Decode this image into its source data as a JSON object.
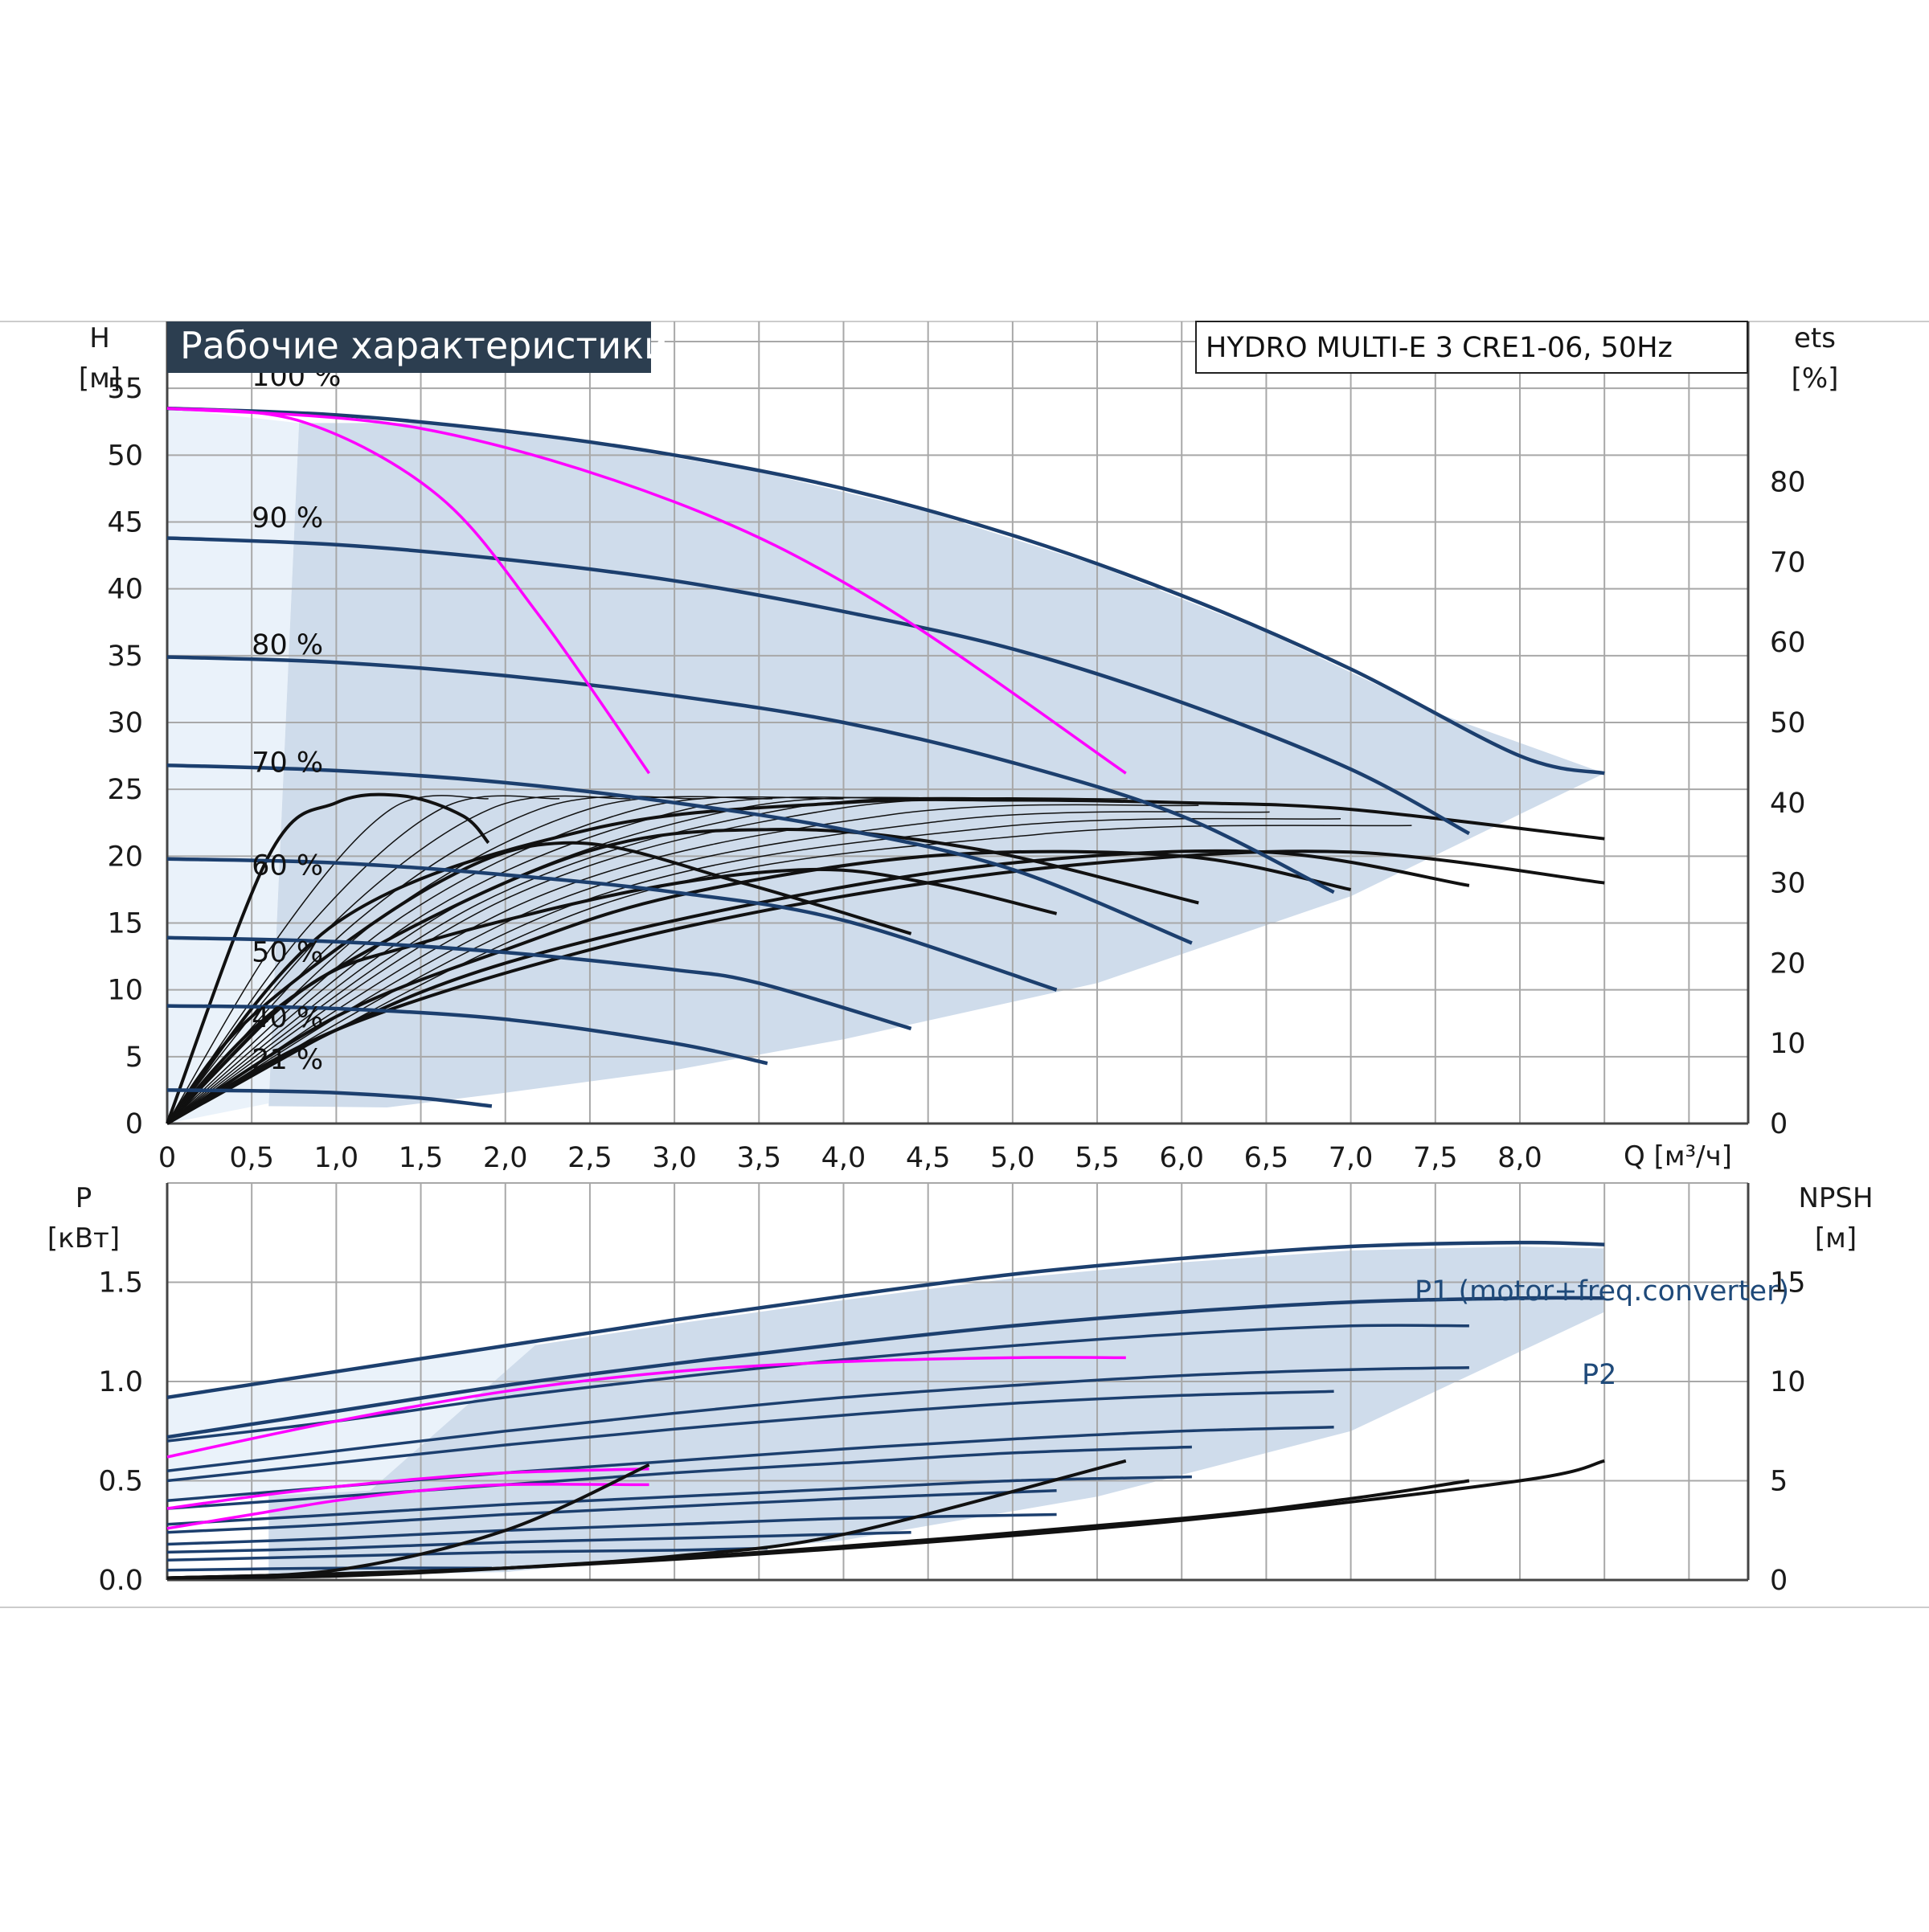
{
  "colors": {
    "grid": "#a8a8a8",
    "band": "#cfdceb",
    "band_light": "#eaf2fa",
    "curve_blue": "#1c3f6e",
    "curve_black": "#111111",
    "curve_magenta": "#ff00ff",
    "title_bg": "#2c3e50"
  },
  "chart_data": [
    {
      "type": "line",
      "panel": "head",
      "title": "Рабочие характеристики",
      "model": "HYDRO MULTI-E 3 CRE1-06, 50Hz",
      "ylabel": "H",
      "yunit": "[м]",
      "y2label": "ets",
      "y2unit": "[%]",
      "xlabel": "Q [м³/ч]",
      "xlim": [
        0,
        9.35
      ],
      "ylim": [
        0,
        60
      ],
      "y2lim": [
        0,
        100
      ],
      "x_ticks": [
        "0",
        "0,5",
        "1,0",
        "1,5",
        "2,0",
        "2,5",
        "3,0",
        "3,5",
        "4,0",
        "4,5",
        "5,0",
        "5,5",
        "6,0",
        "6,5",
        "7,0",
        "7,5",
        "8,0"
      ],
      "y_ticks": [
        "0",
        "5",
        "10",
        "15",
        "20",
        "25",
        "30",
        "35",
        "40",
        "45",
        "50",
        "55"
      ],
      "y2_ticks": [
        "0",
        "10",
        "20",
        "30",
        "40",
        "50",
        "60",
        "70",
        "80"
      ],
      "grid": true,
      "speed_curves": [
        {
          "label": "100 %",
          "x": [
            0,
            1,
            2,
            3,
            4,
            5,
            6,
            7,
            8,
            8.5
          ],
          "y": [
            53.5,
            53,
            51.8,
            50,
            47.5,
            44,
            39.5,
            34,
            27.5,
            26.2
          ]
        },
        {
          "label": "90 %",
          "x": [
            0,
            1,
            2,
            3,
            4,
            5,
            6,
            7,
            7.7
          ],
          "y": [
            43.8,
            43.3,
            42.2,
            40.6,
            38.3,
            35.5,
            31.5,
            26.5,
            21.7
          ]
        },
        {
          "label": "80 %",
          "x": [
            0,
            1,
            2,
            3,
            4,
            5,
            6,
            6.9
          ],
          "y": [
            34.9,
            34.5,
            33.5,
            32,
            30,
            27,
            23,
            17.3
          ]
        },
        {
          "label": "70 %",
          "x": [
            0,
            1,
            2,
            3,
            4,
            5,
            6.06
          ],
          "y": [
            26.8,
            26.4,
            25.5,
            24,
            22,
            19,
            13.5
          ]
        },
        {
          "label": "60 %",
          "x": [
            0,
            1,
            2,
            3,
            4,
            5.26
          ],
          "y": [
            19.8,
            19.5,
            18.6,
            17.3,
            15.2,
            10
          ]
        },
        {
          "label": "50 %",
          "x": [
            0,
            1,
            2,
            3,
            3.5,
            4.4
          ],
          "y": [
            13.9,
            13.6,
            12.8,
            11.5,
            10.5,
            7.1
          ]
        },
        {
          "label": "40 %",
          "x": [
            0,
            1,
            2,
            3,
            3.55
          ],
          "y": [
            8.8,
            8.6,
            7.8,
            6,
            4.5
          ]
        },
        {
          "label": "21 %",
          "x": [
            0,
            0.5,
            1,
            1.5,
            1.92
          ],
          "y": [
            2.5,
            2.45,
            2.3,
            1.9,
            1.3
          ]
        }
      ],
      "system_curves": [
        {
          "x": [
            0,
            0.8,
            1.6,
            2.2,
            2.85
          ],
          "y": [
            53.5,
            52.5,
            47,
            38,
            26.2
          ]
        },
        {
          "x": [
            0,
            1.5,
            3,
            4.2,
            5.67
          ],
          "y": [
            53.5,
            52,
            46.5,
            39,
            26.2
          ]
        }
      ],
      "efficiency_curves": [
        {
          "x": [
            0,
            0.6,
            1,
            1.4,
            1.75,
            1.9
          ],
          "y": [
            0,
            20,
            24,
            24.5,
            23,
            21
          ]
        },
        {
          "x": [
            0,
            0.5,
            1.6,
            2.4,
            3.4,
            4.4
          ],
          "y": [
            0,
            8,
            18,
            21,
            18,
            14.2
          ]
        },
        {
          "x": [
            0,
            0.8,
            2.4,
            3.6,
            4.8,
            6.1
          ],
          "y": [
            0,
            10,
            20,
            22,
            20.5,
            16.5
          ]
        },
        {
          "x": [
            0,
            0.8,
            1.5,
            2.8,
            3.8,
            4.5,
            5.26
          ],
          "y": [
            0,
            10,
            13.5,
            17.5,
            19,
            18,
            15.7
          ]
        },
        {
          "x": [
            0,
            1,
            2,
            3,
            4.5,
            6,
            7
          ],
          "y": [
            0,
            8,
            13,
            17,
            20,
            20,
            17.5
          ]
        },
        {
          "x": [
            0,
            1,
            2,
            3.5,
            5,
            6.5,
            7.7
          ],
          "y": [
            0,
            7,
            12,
            16.5,
            19.5,
            20.3,
            17.8
          ]
        },
        {
          "x": [
            0,
            1,
            2.5,
            4,
            5.5,
            7,
            8.5
          ],
          "y": [
            0,
            7,
            13,
            17,
            19.5,
            20.3,
            18
          ]
        },
        {
          "x": [
            0,
            1,
            2.5,
            4,
            5,
            6,
            7,
            8.5
          ],
          "y": [
            0,
            15,
            22,
            24,
            24.2,
            24,
            23.5,
            21.3
          ]
        }
      ]
    },
    {
      "type": "line",
      "panel": "power",
      "ylabel": "P",
      "yunit": "[кВт]",
      "y2label": "NPSH",
      "y2unit": "[м]",
      "xlim": [
        0,
        9.35
      ],
      "ylim": [
        0,
        2
      ],
      "y2lim": [
        0,
        20
      ],
      "y_ticks": [
        "0.0",
        "0.5",
        "1.0",
        "1.5"
      ],
      "y2_ticks": [
        "0",
        "5",
        "10",
        "15"
      ],
      "grid": true,
      "series_labels": [
        "P1 (motor+freq.converter)",
        "P2"
      ],
      "power_curves": [
        {
          "name": "P1 (motor+freq.converter)",
          "x": [
            0,
            1,
            2,
            3,
            4,
            5,
            6,
            7,
            8,
            8.5
          ],
          "y": [
            0.92,
            1.05,
            1.18,
            1.31,
            1.43,
            1.54,
            1.62,
            1.68,
            1.7,
            1.69
          ]
        },
        {
          "name": "P2",
          "x": [
            0,
            1,
            2,
            3,
            4,
            5,
            6,
            7,
            8,
            8.5
          ],
          "y": [
            0.72,
            0.85,
            0.98,
            1.09,
            1.19,
            1.28,
            1.35,
            1.4,
            1.42,
            1.42
          ]
        },
        {
          "x": [
            0,
            1,
            2,
            3,
            4,
            5,
            6,
            7,
            7.7
          ],
          "y": [
            0.7,
            0.8,
            0.92,
            1.02,
            1.11,
            1.18,
            1.24,
            1.28,
            1.28
          ]
        },
        {
          "x": [
            0,
            1,
            2,
            3,
            4,
            5,
            6,
            7,
            7.7
          ],
          "y": [
            0.55,
            0.65,
            0.75,
            0.84,
            0.92,
            0.98,
            1.03,
            1.06,
            1.07
          ]
        },
        {
          "x": [
            0,
            1,
            2,
            3,
            4,
            5,
            6,
            6.9
          ],
          "y": [
            0.5,
            0.59,
            0.68,
            0.76,
            0.83,
            0.89,
            0.93,
            0.95
          ]
        },
        {
          "x": [
            0,
            1,
            2,
            3,
            4,
            5,
            6,
            6.9
          ],
          "y": [
            0.4,
            0.47,
            0.54,
            0.6,
            0.66,
            0.71,
            0.75,
            0.77
          ]
        },
        {
          "x": [
            0,
            1,
            2,
            3,
            4,
            5,
            6.06
          ],
          "y": [
            0.36,
            0.42,
            0.48,
            0.54,
            0.59,
            0.64,
            0.67
          ]
        },
        {
          "x": [
            0,
            1,
            2,
            3,
            4,
            5,
            6.06
          ],
          "y": [
            0.28,
            0.33,
            0.38,
            0.42,
            0.46,
            0.5,
            0.52
          ]
        },
        {
          "x": [
            0,
            1,
            2,
            3,
            4,
            5.26
          ],
          "y": [
            0.24,
            0.28,
            0.33,
            0.37,
            0.41,
            0.45
          ]
        },
        {
          "x": [
            0,
            1,
            2,
            3,
            4,
            5.26
          ],
          "y": [
            0.18,
            0.21,
            0.25,
            0.28,
            0.31,
            0.33
          ]
        },
        {
          "x": [
            0,
            1,
            2,
            3,
            4.4
          ],
          "y": [
            0.14,
            0.16,
            0.19,
            0.21,
            0.24
          ]
        },
        {
          "x": [
            0,
            1,
            2,
            3,
            3.55
          ],
          "y": [
            0.1,
            0.12,
            0.14,
            0.15,
            0.16
          ]
        },
        {
          "x": [
            0,
            1,
            1.92
          ],
          "y": [
            0.05,
            0.06,
            0.06
          ]
        }
      ],
      "system_power_curves": [
        {
          "x": [
            0,
            1,
            2,
            3,
            4,
            5,
            5.67
          ],
          "y": [
            0.62,
            0.8,
            0.95,
            1.05,
            1.1,
            1.12,
            1.12
          ]
        },
        {
          "x": [
            0,
            0.5,
            1,
            1.5,
            2,
            2.85
          ],
          "y": [
            0.26,
            0.33,
            0.4,
            0.45,
            0.48,
            0.48
          ]
        },
        {
          "x": [
            0,
            0.5,
            1,
            1.5,
            2,
            2.85
          ],
          "y": [
            0.36,
            0.42,
            0.47,
            0.51,
            0.54,
            0.56
          ]
        }
      ],
      "npsh_curves": [
        {
          "x": [
            0,
            1,
            2,
            2.85
          ],
          "y": [
            0.1,
            0.5,
            2.5,
            5.8
          ]
        },
        {
          "x": [
            0,
            1,
            2,
            3,
            4,
            5.67
          ],
          "y": [
            0.1,
            0.2,
            0.6,
            1.2,
            2.3,
            6
          ]
        },
        {
          "x": [
            0,
            2,
            4,
            6,
            7,
            7.7
          ],
          "y": [
            0.1,
            0.6,
            1.7,
            3.1,
            4.1,
            5
          ]
        },
        {
          "x": [
            0,
            2,
            4,
            6,
            8,
            8.5
          ],
          "y": [
            0.1,
            0.6,
            1.6,
            3,
            5,
            6
          ]
        }
      ]
    }
  ]
}
